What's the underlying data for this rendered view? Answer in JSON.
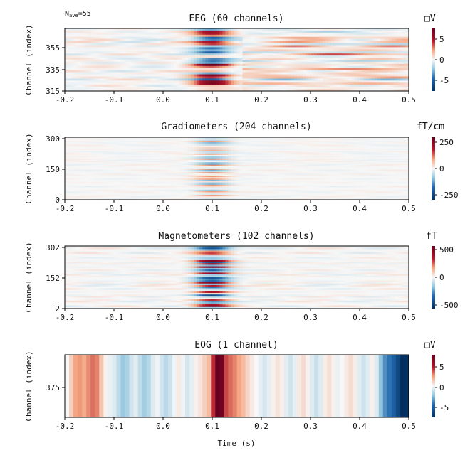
{
  "nave_label": "N",
  "nave_sub": "ave",
  "nave_value": "=55",
  "xlabel": "Time (s)",
  "chart_data": [
    {
      "type": "heatmap",
      "title": "EEG (60 channels)",
      "ylabel": "Channel (index)",
      "xlim": [
        -0.2,
        0.5
      ],
      "x_ticks": [
        "-0.2",
        "-0.1",
        "0.0",
        "0.1",
        "0.2",
        "0.3",
        "0.4",
        "0.5"
      ],
      "y_ticks": [
        "355",
        "335",
        "315"
      ],
      "colorbar_unit": "□V",
      "colorbar_ticks": [
        "5",
        "0",
        "-5"
      ],
      "clim": [
        -7.5,
        7.5
      ],
      "channels": 60
    },
    {
      "type": "heatmap",
      "title": "Gradiometers (204 channels)",
      "ylabel": "Channel (index)",
      "xlim": [
        -0.2,
        0.5
      ],
      "x_ticks": [
        "-0.2",
        "-0.1",
        "0.0",
        "0.1",
        "0.2",
        "0.3",
        "0.4",
        "0.5"
      ],
      "y_ticks": [
        "300",
        "150",
        "0"
      ],
      "colorbar_unit": "fT/cm",
      "colorbar_ticks": [
        "250",
        "0",
        "-250"
      ],
      "clim": [
        -300,
        300
      ],
      "channels": 204
    },
    {
      "type": "heatmap",
      "title": "Magnetometers (102 channels)",
      "ylabel": "Channel (index)",
      "xlim": [
        -0.2,
        0.5
      ],
      "x_ticks": [
        "-0.2",
        "-0.1",
        "0.0",
        "0.1",
        "0.2",
        "0.3",
        "0.4",
        "0.5"
      ],
      "y_ticks": [
        "302",
        "152",
        "2"
      ],
      "colorbar_unit": "fT",
      "colorbar_ticks": [
        "500",
        "0",
        "-500"
      ],
      "clim": [
        -550,
        550
      ],
      "channels": 102
    },
    {
      "type": "heatmap",
      "title": "EOG (1 channel)",
      "ylabel": "Channel (index)",
      "xlim": [
        -0.2,
        0.5
      ],
      "x_ticks": [
        "-0.2",
        "-0.1",
        "0.0",
        "0.1",
        "0.2",
        "0.3",
        "0.4",
        "0.5"
      ],
      "y_ticks": [
        "375"
      ],
      "colorbar_unit": "□V",
      "colorbar_ticks": [
        "5",
        "0",
        "-5"
      ],
      "clim": [
        -8,
        8
      ],
      "channels": 1,
      "time_values": [
        0.0,
        1.2,
        2.4,
        2.6,
        2.2,
        2.8,
        3.3,
        3.0,
        1.5,
        0.2,
        -0.3,
        -0.6,
        -1.4,
        -2.2,
        -1.8,
        -0.9,
        -0.5,
        -1.3,
        -2.0,
        -1.6,
        -0.6,
        -0.2,
        -0.9,
        -1.5,
        -1.0,
        -0.2,
        0.4,
        -0.2,
        -0.8,
        -0.4,
        0.2,
        0.6,
        1.2,
        1.8,
        4.5,
        8.2,
        7.6,
        4.0,
        3.4,
        3.0,
        2.4,
        1.8,
        1.0,
        0.4,
        0.0,
        -0.4,
        -0.8,
        -0.4,
        0.2,
        0.6,
        0.2,
        -0.5,
        -0.9,
        -0.4,
        0.4,
        0.8,
        0.2,
        -0.6,
        -1.1,
        -0.6,
        0.3,
        0.7,
        0.2,
        -0.3,
        0.0,
        0.4,
        0.8,
        0.3,
        -0.5,
        -1.0,
        -0.5,
        0.2,
        -0.6,
        -2.4,
        -3.8,
        -4.5,
        -5.2,
        -6.6,
        -8.0,
        -8.5
      ]
    }
  ]
}
